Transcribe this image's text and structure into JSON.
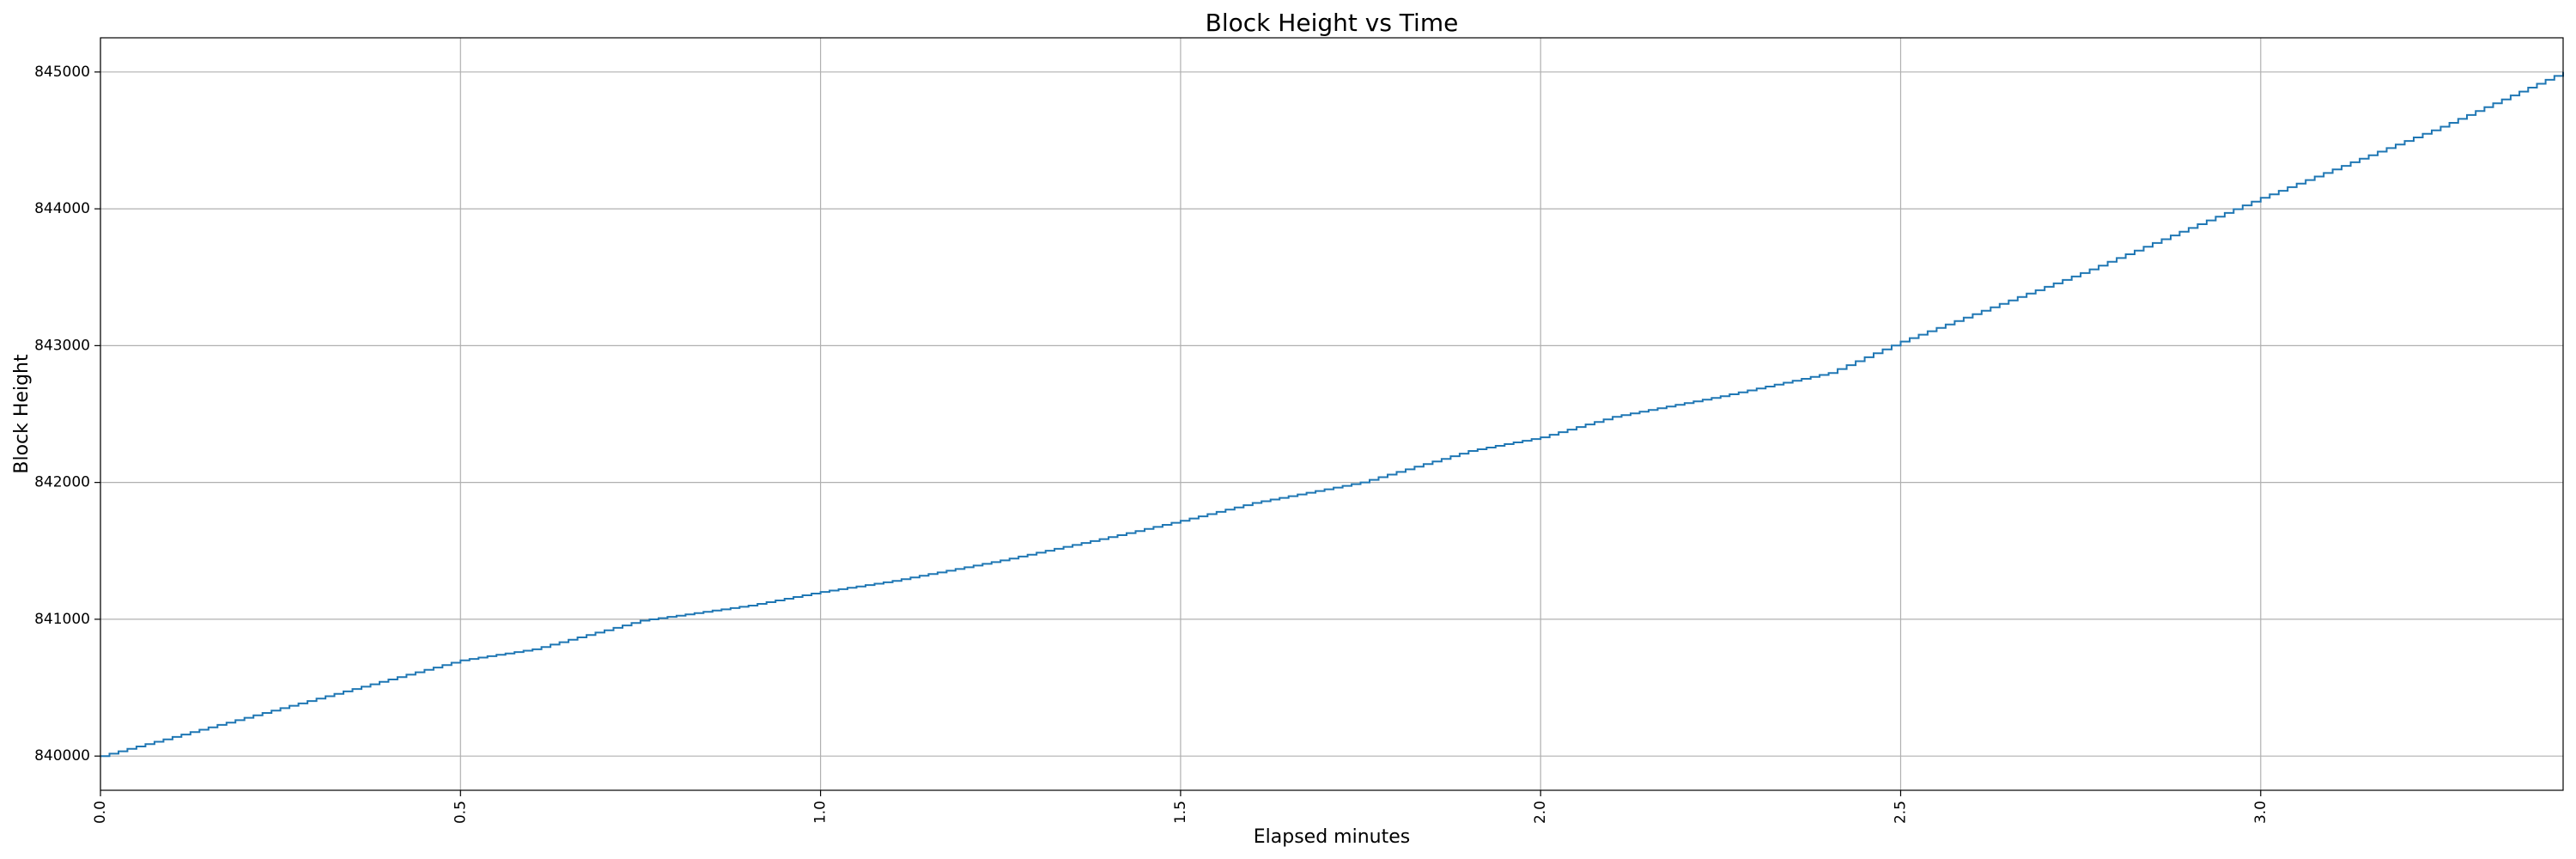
{
  "chart_data": {
    "type": "line",
    "step": true,
    "title": "Block Height vs Time",
    "xlabel": "Elapsed minutes",
    "ylabel": "Block Height",
    "xlim": [
      0.0,
      3.42
    ],
    "ylim": [
      839750,
      845250
    ],
    "xticks": [
      0.0,
      0.5,
      1.0,
      1.5,
      2.0,
      2.5,
      3.0
    ],
    "xtick_labels": [
      "0.0",
      "0.5",
      "1.0",
      "1.5",
      "2.0",
      "2.5",
      "3.0"
    ],
    "yticks": [
      840000,
      841000,
      842000,
      843000,
      844000,
      845000
    ],
    "ytick_labels": [
      "840000",
      "841000",
      "842000",
      "843000",
      "844000",
      "845000"
    ],
    "grid": true,
    "line_color": "#1f77b4",
    "series": [
      {
        "x": [
          0.0,
          0.25,
          0.5,
          0.6,
          0.75,
          0.9,
          1.0,
          1.1,
          1.25,
          1.4,
          1.5,
          1.6,
          1.75,
          1.9,
          2.0,
          2.1,
          2.25,
          2.4,
          2.5,
          2.75,
          3.0,
          3.25,
          3.42
        ],
        "y": [
          840000,
          840350,
          840700,
          840780,
          840990,
          841100,
          841200,
          841280,
          841430,
          841600,
          841720,
          841850,
          842000,
          842230,
          842330,
          842480,
          842630,
          842800,
          843030,
          843530,
          844080,
          844600,
          845000
        ]
      }
    ]
  }
}
